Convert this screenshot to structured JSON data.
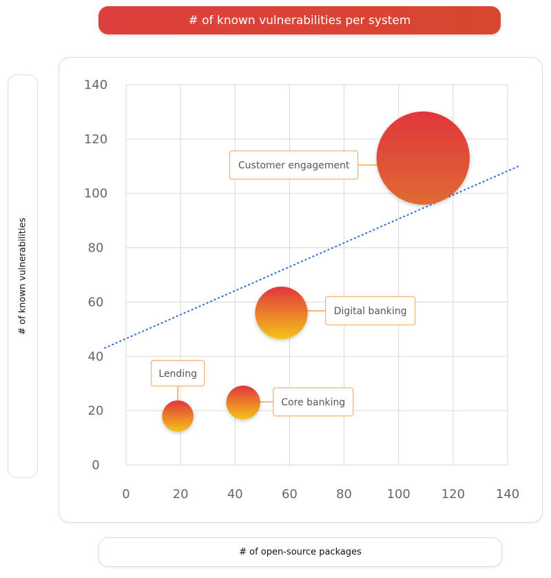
{
  "chart_data": {
    "type": "scatter",
    "title": "# of known vulnerabilities per system",
    "xlabel": "# of open-source packages",
    "ylabel": "# of known vulnerabilities",
    "xlim": [
      0,
      140
    ],
    "ylim": [
      0,
      140
    ],
    "x_ticks": [
      "0",
      "20",
      "40",
      "60",
      "80",
      "100",
      "120",
      "140"
    ],
    "y_ticks": [
      "0",
      "20",
      "40",
      "60",
      "80",
      "100",
      "120",
      "140"
    ],
    "grid": true,
    "points": [
      {
        "label": "Customer engagement",
        "x": 109,
        "y": 113,
        "size": 110
      },
      {
        "label": "Digital banking",
        "x": 57,
        "y": 56,
        "size": 62
      },
      {
        "label": "Core banking",
        "x": 43,
        "y": 23,
        "size": 40
      },
      {
        "label": "Lending",
        "x": 19,
        "y": 18,
        "size": 37
      }
    ],
    "trendline": {
      "style": "dotted",
      "color": "#2f6be0",
      "from": [
        -8,
        43
      ],
      "to": [
        144,
        110
      ]
    },
    "colors": {
      "bubble_top": "#e0363c",
      "bubble_bottom": "#f5c419",
      "callout_border": "#f0a050",
      "grid": "#d7d7d7"
    }
  }
}
